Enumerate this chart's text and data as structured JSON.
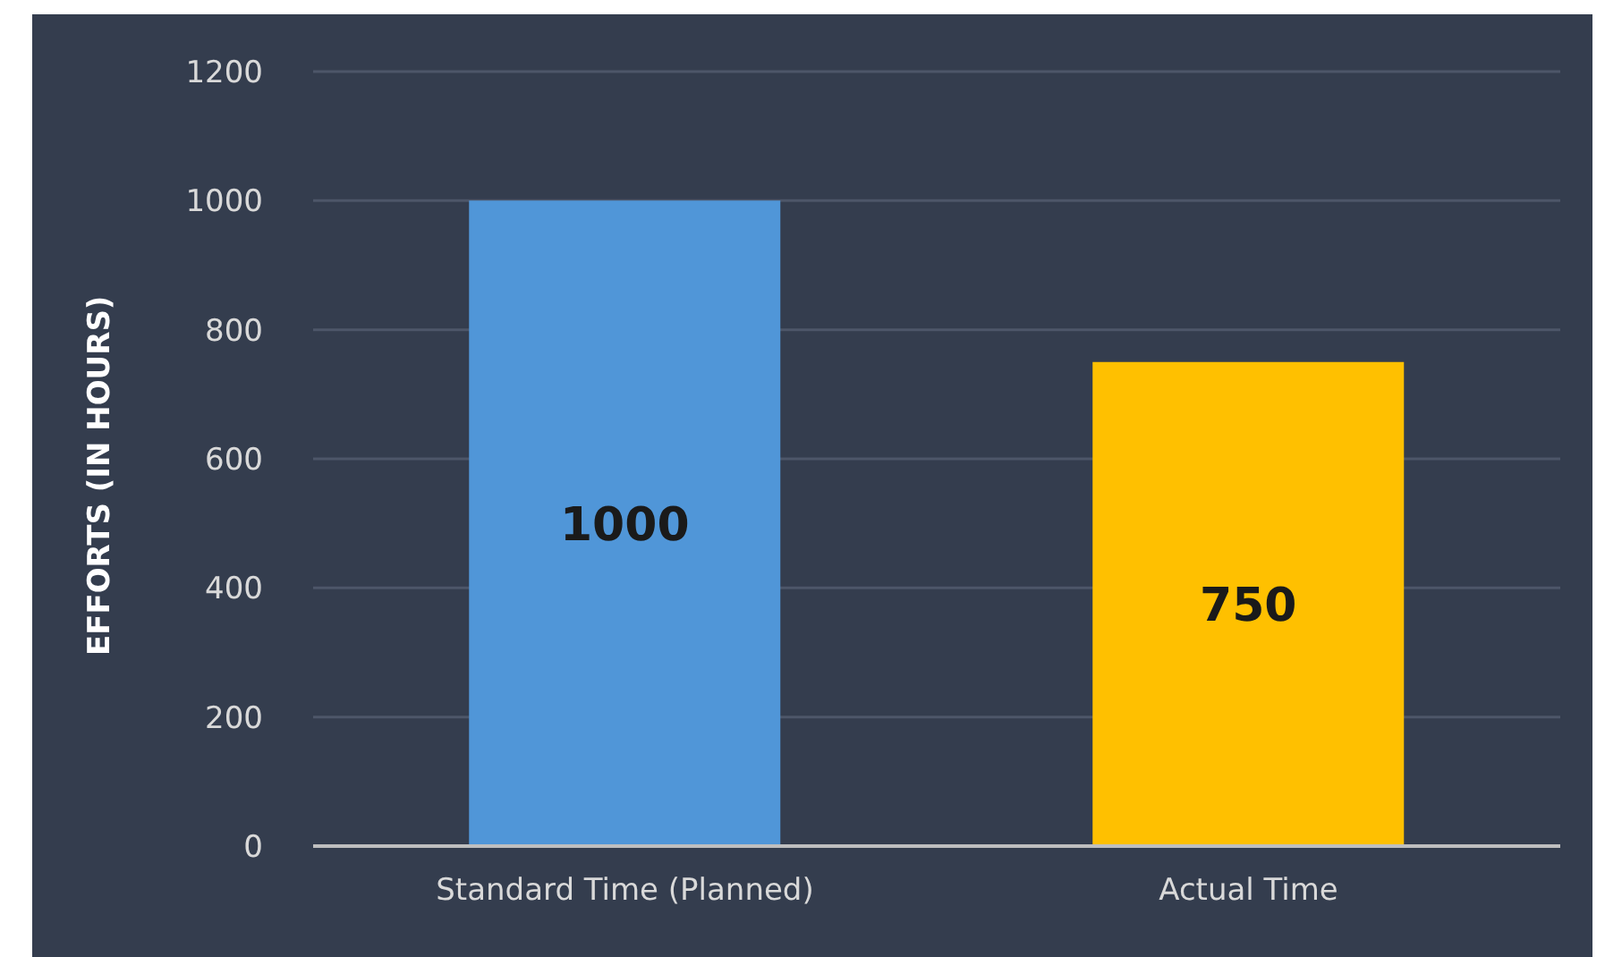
{
  "chart_data": {
    "type": "bar",
    "ylabel": "EFFORTS (IN HOURS)",
    "categories": [
      "Standard Time (Planned)",
      "Actual Time"
    ],
    "values": [
      1000,
      750
    ],
    "colors": [
      "#5096d8",
      "#ffc000"
    ],
    "ylim": [
      0,
      1200
    ],
    "yticks": [
      0,
      200,
      400,
      600,
      800,
      1000,
      1200
    ],
    "grid": "y",
    "data_labels": true
  }
}
